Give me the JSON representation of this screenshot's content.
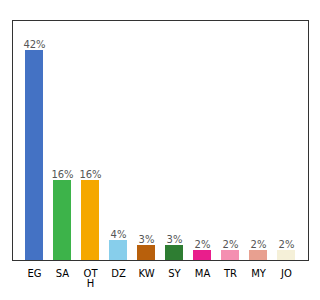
{
  "chart_data": {
    "type": "bar",
    "categories": [
      "EG",
      "SA",
      "OT\nH",
      "DZ",
      "KW",
      "SY",
      "MA",
      "TR",
      "MY",
      "JO"
    ],
    "values": [
      42,
      16,
      16,
      4,
      3,
      3,
      2,
      2,
      2,
      2
    ],
    "value_labels": [
      "42%",
      "16%",
      "16%",
      "4%",
      "3%",
      "3%",
      "2%",
      "2%",
      "2%",
      "2%"
    ],
    "colors": [
      "#4472c4",
      "#3db34a",
      "#f5a800",
      "#87ceeb",
      "#b8600c",
      "#2e7d32",
      "#e91e8c",
      "#f48fb1",
      "#e8a090",
      "#f5f0d8"
    ],
    "ylim": [
      0,
      48
    ],
    "data_labels": true,
    "tick_labels": "x"
  }
}
